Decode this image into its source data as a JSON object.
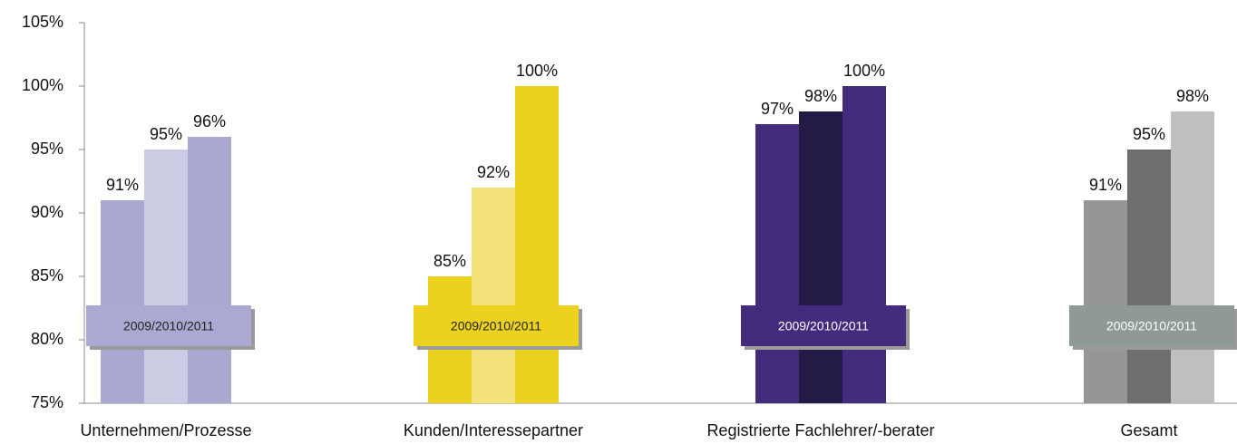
{
  "chart_data": {
    "type": "bar",
    "categories": [
      "Unternehmen/Prozesse",
      "Kunden/Interessepartner",
      "Registrierte Fachlehrer/-berater",
      "Gesamt"
    ],
    "series": [
      {
        "colors": [
          "#a8a8d0",
          "#ead11d",
          "#432c7e",
          "#969696"
        ],
        "values": [
          91,
          85,
          97,
          91
        ],
        "value_labels": [
          "91%",
          "85%",
          "97%",
          "91%"
        ]
      },
      {
        "colors": [
          "#cbcbe4",
          "#f3e27a",
          "#241a46",
          "#6e6e6e"
        ],
        "values": [
          95,
          92,
          98,
          95
        ],
        "value_labels": [
          "95%",
          "92%",
          "98%",
          "95%"
        ]
      },
      {
        "colors": [
          "#a8a8d0",
          "#ead11d",
          "#432c7e",
          "#bfbfbf"
        ],
        "values": [
          96,
          100,
          100,
          98
        ],
        "value_labels": [
          "96%",
          "100%",
          "100%",
          "98%"
        ]
      }
    ],
    "group_label": "2009/2010/2011",
    "box_colors": [
      "#a9a9d1",
      "#ecd21e",
      "#432c7e",
      "#8f9a98"
    ],
    "box_text_colors": [
      "#222222",
      "#222222",
      "#ffffff",
      "#ffffff"
    ],
    "ylim": [
      75,
      105
    ],
    "yticks": [
      {
        "value": 75,
        "label": "75%"
      },
      {
        "value": 80,
        "label": "80%"
      },
      {
        "value": 85,
        "label": "85%"
      },
      {
        "value": 90,
        "label": "90%"
      },
      {
        "value": 95,
        "label": "95%"
      },
      {
        "value": 100,
        "label": "100%"
      },
      {
        "value": 105,
        "label": "105%"
      }
    ]
  }
}
